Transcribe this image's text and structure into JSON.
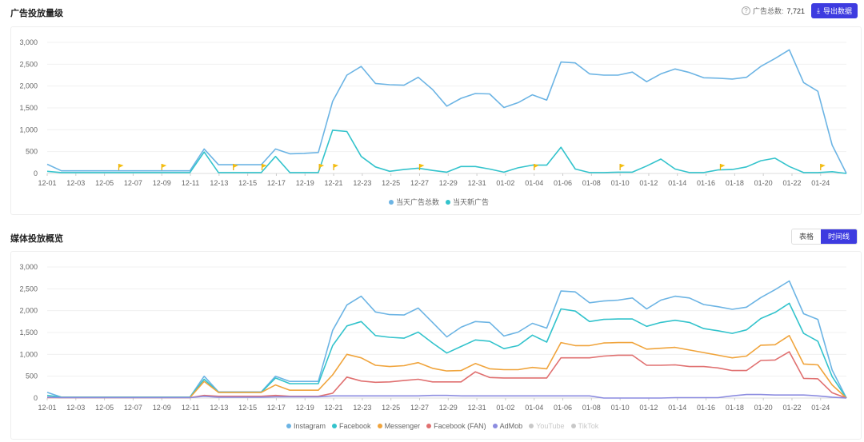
{
  "section1": {
    "title": "广告投放量级",
    "total_label": "广告总数:",
    "total_value": "7,721",
    "export_label": "导出数据"
  },
  "section2": {
    "title": "媒体投放概览",
    "toggle_table": "表格",
    "toggle_timeline": "时间线"
  },
  "chart_data": [
    {
      "type": "line",
      "title": "广告投放量级",
      "ylim": [
        0,
        3000
      ],
      "yticks": [
        "3,000",
        "2,500",
        "2,000",
        "1,500",
        "1,000",
        "500",
        "0"
      ],
      "x_tick_labels": [
        "12-01",
        "12-03",
        "12-05",
        "12-07",
        "12-09",
        "12-11",
        "12-13",
        "12-15",
        "12-17",
        "12-19",
        "12-21",
        "12-23",
        "12-25",
        "12-27",
        "12-29",
        "12-31",
        "01-02",
        "01-04",
        "01-06",
        "01-08",
        "01-10",
        "01-12",
        "01-14",
        "01-16",
        "01-18",
        "01-20",
        "01-22",
        "01-24"
      ],
      "series": [
        {
          "name": "当天广告总数",
          "color": "#6cb4e4",
          "values": [
            210,
            60,
            60,
            60,
            60,
            60,
            60,
            60,
            60,
            60,
            60,
            560,
            200,
            200,
            200,
            200,
            560,
            450,
            460,
            480,
            1650,
            2250,
            2450,
            2060,
            2030,
            2020,
            2200,
            1920,
            1540,
            1720,
            1830,
            1820,
            1510,
            1620,
            1800,
            1680,
            2550,
            2530,
            2280,
            2250,
            2250,
            2320,
            2100,
            2280,
            2390,
            2310,
            2190,
            2180,
            2160,
            2200,
            2450,
            2630,
            2830,
            2080,
            1880,
            650,
            0
          ]
        },
        {
          "name": "当天新广告",
          "color": "#33c3cc",
          "values": [
            50,
            20,
            20,
            20,
            20,
            20,
            20,
            20,
            20,
            20,
            20,
            490,
            20,
            20,
            20,
            20,
            390,
            20,
            20,
            20,
            990,
            960,
            390,
            150,
            50,
            90,
            120,
            70,
            30,
            160,
            160,
            100,
            30,
            130,
            190,
            190,
            600,
            100,
            20,
            20,
            30,
            30,
            170,
            330,
            100,
            20,
            20,
            80,
            90,
            150,
            290,
            350,
            160,
            20,
            20,
            40,
            0
          ]
        }
      ],
      "flags": [
        "12-06",
        "12-09",
        "12-14",
        "12-16",
        "12-20",
        "12-21",
        "12-27",
        "01-04",
        "01-10",
        "01-17",
        "01-24"
      ]
    },
    {
      "type": "line",
      "title": "媒体投放概览",
      "ylim": [
        0,
        3000
      ],
      "yticks": [
        "3,000",
        "2,500",
        "2,000",
        "1,500",
        "1,000",
        "500",
        "0"
      ],
      "x_tick_labels": [
        "12-01",
        "12-03",
        "12-05",
        "12-07",
        "12-09",
        "12-11",
        "12-13",
        "12-15",
        "12-17",
        "12-19",
        "12-21",
        "12-23",
        "12-25",
        "12-27",
        "12-29",
        "12-31",
        "01-02",
        "01-04",
        "01-06",
        "01-08",
        "01-10",
        "01-12",
        "01-14",
        "01-16",
        "01-18",
        "01-20",
        "01-22",
        "01-24"
      ],
      "series": [
        {
          "name": "Instagram",
          "color": "#6cb4e4",
          "disabled": false,
          "values": [
            130,
            20,
            20,
            20,
            20,
            20,
            20,
            20,
            20,
            20,
            20,
            500,
            140,
            140,
            140,
            140,
            500,
            380,
            380,
            380,
            1550,
            2130,
            2330,
            1970,
            1910,
            1900,
            2060,
            1730,
            1400,
            1620,
            1750,
            1730,
            1420,
            1510,
            1710,
            1600,
            2450,
            2430,
            2180,
            2220,
            2240,
            2290,
            2040,
            2240,
            2330,
            2290,
            2140,
            2090,
            2030,
            2080,
            2300,
            2480,
            2680,
            1930,
            1800,
            640,
            0
          ]
        },
        {
          "name": "Facebook",
          "color": "#33c3cc",
          "disabled": false,
          "values": [
            60,
            20,
            20,
            20,
            20,
            20,
            20,
            20,
            20,
            20,
            20,
            430,
            130,
            130,
            130,
            130,
            460,
            330,
            330,
            330,
            1200,
            1650,
            1750,
            1430,
            1390,
            1370,
            1510,
            1260,
            1030,
            1180,
            1330,
            1300,
            1130,
            1200,
            1440,
            1280,
            2040,
            1990,
            1750,
            1800,
            1810,
            1810,
            1640,
            1730,
            1780,
            1730,
            1590,
            1540,
            1480,
            1560,
            1820,
            1960,
            2170,
            1480,
            1300,
            490,
            0
          ]
        },
        {
          "name": "Messenger",
          "color": "#f0a43c",
          "disabled": false,
          "values": [
            20,
            10,
            10,
            10,
            10,
            10,
            10,
            10,
            10,
            10,
            10,
            380,
            130,
            130,
            130,
            130,
            300,
            180,
            180,
            180,
            530,
            1000,
            920,
            750,
            720,
            740,
            810,
            680,
            620,
            630,
            790,
            670,
            650,
            650,
            700,
            670,
            1270,
            1200,
            1200,
            1260,
            1270,
            1270,
            1120,
            1140,
            1160,
            1100,
            1040,
            980,
            920,
            960,
            1210,
            1220,
            1430,
            780,
            760,
            300,
            0
          ]
        },
        {
          "name": "Facebook (FAN)",
          "color": "#e07070",
          "disabled": false,
          "values": [
            10,
            10,
            10,
            10,
            10,
            10,
            10,
            10,
            10,
            10,
            10,
            60,
            40,
            40,
            40,
            40,
            60,
            40,
            40,
            40,
            110,
            480,
            390,
            360,
            370,
            400,
            430,
            370,
            370,
            370,
            600,
            470,
            460,
            460,
            460,
            460,
            920,
            920,
            920,
            960,
            980,
            980,
            750,
            750,
            760,
            720,
            720,
            690,
            630,
            630,
            860,
            870,
            1060,
            450,
            440,
            120,
            0
          ]
        },
        {
          "name": "AdMob",
          "color": "#8c8ce0",
          "disabled": false,
          "values": [
            20,
            10,
            10,
            10,
            10,
            10,
            10,
            10,
            10,
            10,
            10,
            40,
            20,
            20,
            20,
            20,
            30,
            30,
            30,
            30,
            50,
            50,
            50,
            50,
            50,
            50,
            50,
            60,
            60,
            50,
            50,
            50,
            50,
            50,
            50,
            50,
            50,
            50,
            50,
            0,
            0,
            0,
            0,
            0,
            10,
            10,
            10,
            10,
            50,
            80,
            80,
            70,
            70,
            70,
            50,
            20,
            0
          ]
        },
        {
          "name": "YouTube",
          "color": "#c8c8c8",
          "disabled": true,
          "values": []
        },
        {
          "name": "TikTok",
          "color": "#c8c8c8",
          "disabled": true,
          "values": []
        }
      ]
    }
  ]
}
